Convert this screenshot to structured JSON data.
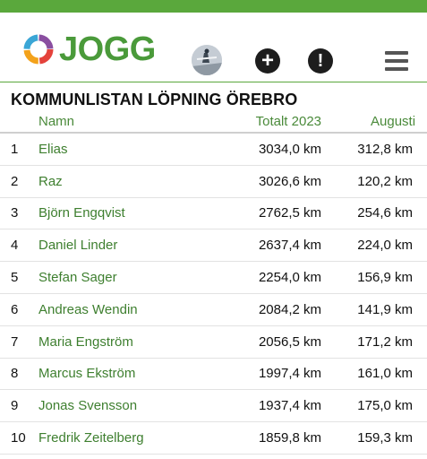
{
  "app": {
    "logo_text": "JOGG"
  },
  "page": {
    "title": "KOMMUNLISTAN LÖPNING ÖREBRO"
  },
  "table": {
    "headers": {
      "rank": "",
      "name": "Namn",
      "total": "Totalt 2023",
      "month": "Augusti"
    },
    "rows": [
      {
        "rank": "1",
        "name": "Elias",
        "total": "3034,0 km",
        "month": "312,8 km"
      },
      {
        "rank": "2",
        "name": "Raz",
        "total": "3026,6 km",
        "month": "120,2 km"
      },
      {
        "rank": "3",
        "name": "Björn Engqvist",
        "total": "2762,5 km",
        "month": "254,6 km"
      },
      {
        "rank": "4",
        "name": "Daniel Linder",
        "total": "2637,4 km",
        "month": "224,0 km"
      },
      {
        "rank": "5",
        "name": "Stefan Sager",
        "total": "2254,0 km",
        "month": "156,9 km"
      },
      {
        "rank": "6",
        "name": "Andreas Wendin",
        "total": "2084,2 km",
        "month": "141,9 km"
      },
      {
        "rank": "7",
        "name": "Maria Engström",
        "total": "2056,5 km",
        "month": "171,2 km"
      },
      {
        "rank": "8",
        "name": "Marcus Ekström",
        "total": "1997,4 km",
        "month": "161,0 km"
      },
      {
        "rank": "9",
        "name": "Jonas Svensson",
        "total": "1937,4 km",
        "month": "175,0 km"
      },
      {
        "rank": "10",
        "name": "Fredrik Zeitelberg",
        "total": "1859,8 km",
        "month": "159,3 km"
      }
    ]
  },
  "colors": {
    "brand_green": "#5aa83c",
    "link_green": "#3e7f2f"
  },
  "icons": {
    "logo": "jogg-ring-logo-icon",
    "add": "plus-circle-icon",
    "alert": "exclamation-circle-icon",
    "menu": "hamburger-menu-icon"
  }
}
